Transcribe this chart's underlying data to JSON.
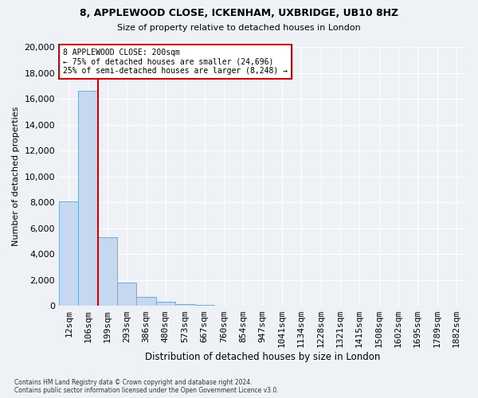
{
  "title1": "8, APPLEWOOD CLOSE, ICKENHAM, UXBRIDGE, UB10 8HZ",
  "title2": "Size of property relative to detached houses in London",
  "xlabel": "Distribution of detached houses by size in London",
  "ylabel": "Number of detached properties",
  "categories": [
    "12sqm",
    "106sqm",
    "199sqm",
    "293sqm",
    "386sqm",
    "480sqm",
    "573sqm",
    "667sqm",
    "760sqm",
    "854sqm",
    "947sqm",
    "1041sqm",
    "1134sqm",
    "1228sqm",
    "1321sqm",
    "1415sqm",
    "1508sqm",
    "1602sqm",
    "1695sqm",
    "1789sqm",
    "1882sqm"
  ],
  "bar_values": [
    8100,
    16600,
    5300,
    1800,
    700,
    300,
    170,
    80,
    0,
    0,
    0,
    0,
    0,
    0,
    0,
    0,
    0,
    0,
    0,
    0,
    0
  ],
  "bar_color": "#c5d8ef",
  "bar_edgecolor": "#6baed6",
  "highlight_line_color": "#cc0000",
  "annotation_line1": "8 APPLEWOOD CLOSE: 200sqm",
  "annotation_line2": "← 75% of detached houses are smaller (24,696)",
  "annotation_line3": "25% of semi-detached houses are larger (8,248) →",
  "annotation_box_color": "#cc0000",
  "ylim": [
    0,
    20000
  ],
  "yticks": [
    0,
    2000,
    4000,
    6000,
    8000,
    10000,
    12000,
    14000,
    16000,
    18000,
    20000
  ],
  "bg_color": "#eef2f7",
  "plot_bg_color": "#eef2f7",
  "grid_color": "#ffffff",
  "footnote": "Contains HM Land Registry data © Crown copyright and database right 2024.\nContains public sector information licensed under the Open Government Licence v3.0."
}
